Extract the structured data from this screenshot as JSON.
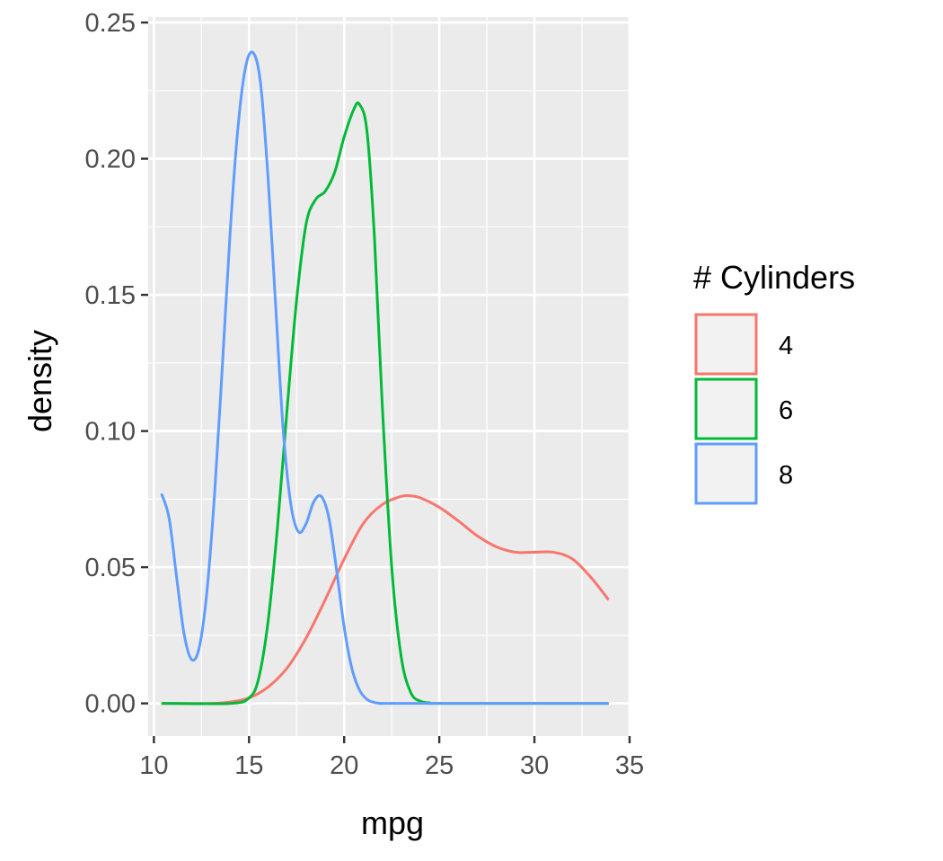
{
  "chart_data": {
    "type": "line",
    "title": "",
    "xlabel": "mpg",
    "ylabel": "density",
    "xlim": [
      9.7,
      35
    ],
    "ylim": [
      -0.012,
      0.252
    ],
    "x_ticks": [
      10,
      15,
      20,
      25,
      30,
      35
    ],
    "x_tick_labels": [
      "10",
      "15",
      "20",
      "25",
      "30",
      "35"
    ],
    "y_ticks": [
      0.0,
      0.05,
      0.1,
      0.15,
      0.2,
      0.25
    ],
    "y_tick_labels": [
      "0.00",
      "0.05",
      "0.10",
      "0.15",
      "0.20",
      "0.25"
    ],
    "grid": true,
    "panel_background": "#ebebeb",
    "legend": {
      "title": "# Cylinders",
      "placement": "right",
      "entries": [
        {
          "label": "4",
          "color": "#f8766d"
        },
        {
          "label": "6",
          "color": "#00ba38"
        },
        {
          "label": "8",
          "color": "#619cff"
        }
      ]
    },
    "series": [
      {
        "name": "4",
        "color": "#f8766d",
        "x": [
          10.4,
          13.0,
          14.0,
          15.0,
          16.0,
          17.0,
          18.0,
          19.0,
          20.0,
          21.0,
          22.0,
          23.0,
          23.5,
          24.0,
          25.0,
          26.0,
          27.0,
          28.0,
          29.0,
          30.0,
          31.0,
          32.0,
          33.0,
          33.9
        ],
        "y": [
          0.0,
          0.0,
          0.0005,
          0.002,
          0.006,
          0.013,
          0.024,
          0.038,
          0.053,
          0.066,
          0.073,
          0.076,
          0.0762,
          0.0755,
          0.072,
          0.067,
          0.0615,
          0.0575,
          0.0555,
          0.0555,
          0.0555,
          0.053,
          0.046,
          0.038
        ]
      },
      {
        "name": "6",
        "color": "#00ba38",
        "x": [
          10.4,
          14.0,
          15.0,
          15.5,
          16.0,
          16.5,
          17.0,
          17.5,
          18.0,
          18.5,
          19.0,
          19.5,
          20.0,
          20.5,
          20.8,
          21.2,
          21.6,
          22.0,
          22.5,
          23.0,
          23.5,
          24.0,
          24.5,
          25.0,
          33.9
        ],
        "y": [
          0.0,
          0.0,
          0.002,
          0.009,
          0.03,
          0.065,
          0.108,
          0.148,
          0.176,
          0.185,
          0.188,
          0.195,
          0.208,
          0.218,
          0.22,
          0.21,
          0.17,
          0.11,
          0.05,
          0.017,
          0.004,
          0.0008,
          0.0002,
          0.0,
          0.0
        ]
      },
      {
        "name": "8",
        "color": "#619cff",
        "x": [
          10.4,
          10.8,
          11.2,
          11.6,
          12.0,
          12.4,
          12.8,
          13.2,
          13.6,
          14.0,
          14.4,
          14.8,
          15.2,
          15.6,
          16.0,
          16.4,
          16.8,
          17.2,
          17.6,
          18.0,
          18.4,
          18.8,
          19.2,
          19.6,
          20.0,
          20.4,
          20.8,
          21.2,
          21.6,
          22.0,
          23.0,
          33.9
        ],
        "y": [
          0.077,
          0.068,
          0.046,
          0.025,
          0.016,
          0.021,
          0.042,
          0.078,
          0.124,
          0.172,
          0.21,
          0.233,
          0.239,
          0.228,
          0.193,
          0.146,
          0.1,
          0.073,
          0.063,
          0.066,
          0.074,
          0.076,
          0.068,
          0.049,
          0.028,
          0.013,
          0.005,
          0.0015,
          0.0003,
          0.0,
          0.0,
          0.0
        ]
      }
    ]
  }
}
